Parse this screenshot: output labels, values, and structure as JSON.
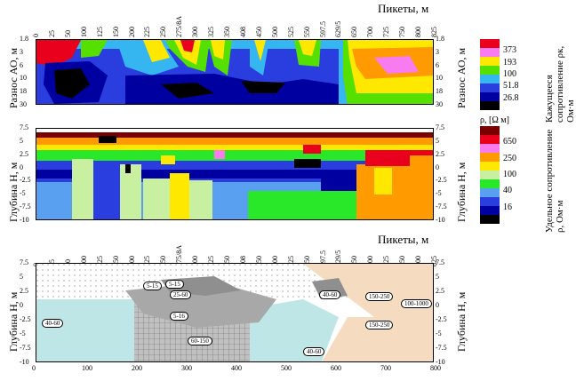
{
  "top_axis_title": "Пикеты, м",
  "bottom_axis_title": "Пикеты, м",
  "pickets": [
    "0",
    "25",
    "50",
    "100",
    "125",
    "150",
    "200",
    "225",
    "250",
    "275/8А",
    "300",
    "325",
    "350",
    "408",
    "450",
    "500",
    "525",
    "550",
    "597.5",
    "629/5",
    "650",
    "700",
    "725",
    "750",
    "800",
    "825"
  ],
  "bottom_pickets": [
    "0",
    "25",
    "50",
    "100",
    "125",
    "150",
    "200",
    "225",
    "250",
    "275/8А",
    "300",
    "325",
    "350",
    "408",
    "450",
    "500",
    "525",
    "550",
    "597.5",
    "629/5",
    "650",
    "700",
    "725",
    "750",
    "800",
    "825"
  ],
  "panel1": {
    "left_label": "Разнос АО, м",
    "right_label": "Разнос АО, м",
    "y_ticks": [
      "1.8",
      "3",
      "6",
      "10",
      "18",
      "30"
    ]
  },
  "legend1": {
    "title": "Кажущееся сопротивление ρк, Ом·м",
    "values": [
      "373",
      "193",
      "100",
      "51.8",
      "26.8"
    ],
    "colors": [
      "#e8001c",
      "#f87cf0",
      "#ffe800",
      "#56e000",
      "#36b6f0",
      "#2a3ee0",
      "#0000a0",
      "#000000"
    ]
  },
  "panel2": {
    "left_label": "Глубина Н, м",
    "right_label": "Глубина Н, м",
    "y_ticks": [
      "7.5",
      "5",
      "2.5",
      "0",
      "-2.5",
      "-5",
      "-7.5",
      "-10"
    ]
  },
  "legend2": {
    "title_top": "ρ, [Ω м]",
    "title": "Удельное сопротивление ρ, Ом·м",
    "values": [
      "650",
      "250",
      "100",
      "40",
      "16"
    ],
    "colors": [
      "#7a0000",
      "#e8001c",
      "#f87cf0",
      "#ff9a00",
      "#ffe800",
      "#c8f0a0",
      "#29e829",
      "#5aa0f0",
      "#2a3ee0",
      "#0000a0",
      "#000000"
    ]
  },
  "panel3": {
    "left_label": "Глубина Н, м",
    "right_label": "Глубина Н, м",
    "y_ticks": [
      "7.5",
      "5",
      "2.5",
      "0",
      "-2.5",
      "-5",
      "-7.5",
      "-10"
    ],
    "x_ticks": [
      "0",
      "100",
      "200",
      "300",
      "400",
      "500",
      "600",
      "700",
      "800"
    ],
    "zones": [
      "5-15",
      "5-15",
      "25-60",
      "5-16",
      "40-60",
      "60-150",
      "40-60",
      "150-250",
      "100-1000",
      "150-250",
      "40-60"
    ]
  }
}
